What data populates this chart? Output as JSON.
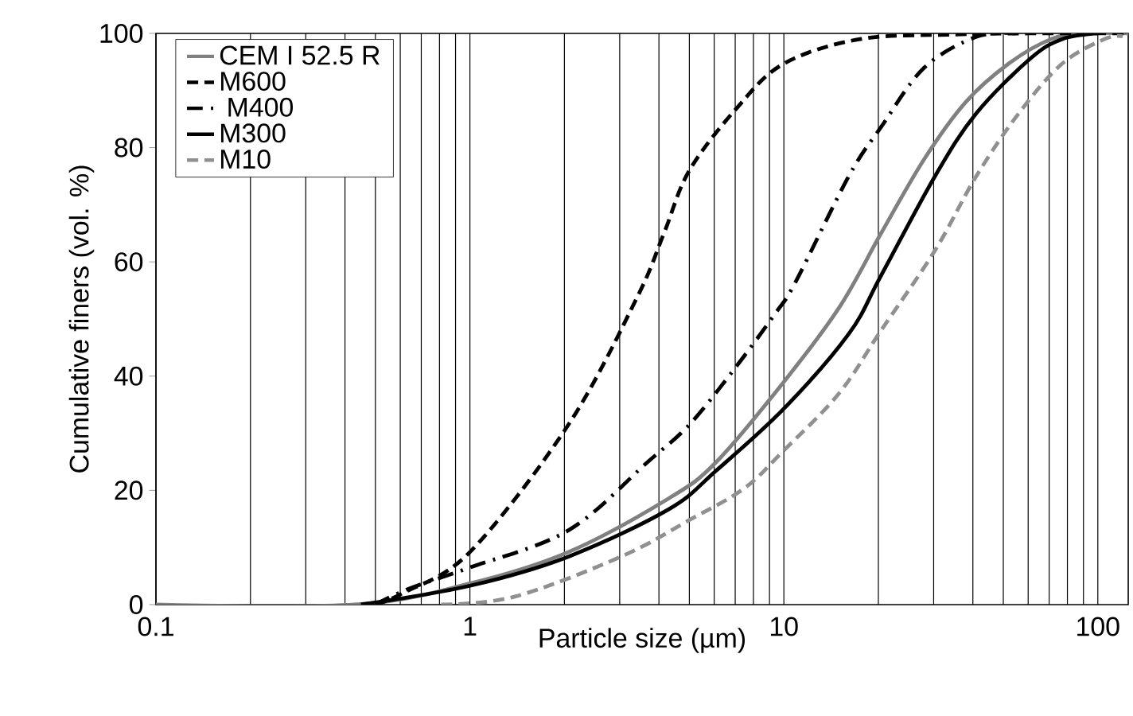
{
  "chart_data": {
    "type": "line",
    "xlabel": "Particle size (µm)",
    "ylabel": "Cumulative finers (vol. %)",
    "log": "x",
    "xlim": [
      0.1,
      125
    ],
    "ylim": [
      0,
      100
    ],
    "xticks": [
      0.1,
      1,
      10,
      100
    ],
    "yticks": [
      0,
      20,
      40,
      60,
      80,
      100
    ],
    "grid": "x",
    "legend": "top left",
    "marker": "none",
    "series": [
      {
        "name": "CEM I 52.5 R",
        "color": "#808080",
        "line_style": "solid",
        "x": [
          0.1,
          0.43,
          1,
          2.06,
          4.3,
          6.1,
          10,
          15,
          20.4,
          28,
          38,
          52,
          71,
          90,
          125
        ],
        "values": [
          0,
          0,
          3.7,
          9.2,
          18.6,
          25,
          39,
          52,
          65,
          78,
          88,
          94.7,
          99,
          100,
          100
        ]
      },
      {
        "name": "M600",
        "color": "#000000",
        "line_style": "dashed",
        "x": [
          0.5,
          0.61,
          1,
          2.06,
          3.41,
          4.15,
          5,
          7.1,
          10,
          17.5,
          35,
          60,
          125
        ],
        "values": [
          0,
          2,
          9.2,
          31.5,
          53.8,
          65,
          76,
          87,
          94.7,
          99,
          99.8,
          100,
          100
        ]
      },
      {
        "name": " M400",
        "color": "#000000",
        "line_style": "dashdot",
        "x": [
          0.5,
          0.64,
          1,
          2.06,
          3.69,
          5,
          6.9,
          9.4,
          10.9,
          16.1,
          20.4,
          28,
          41,
          55
        ],
        "values": [
          0,
          2.8,
          6.5,
          13,
          25,
          31.5,
          41,
          51,
          56.5,
          75,
          83.6,
          94,
          99.4,
          100
        ]
      },
      {
        "name": "M300",
        "color": "#000000",
        "line_style": "solid",
        "x": [
          0.45,
          1,
          2.06,
          4.3,
          6.1,
          10,
          16.1,
          20.4,
          30.3,
          41,
          61,
          77,
          100
        ],
        "values": [
          0,
          3.3,
          8.4,
          16.7,
          23.5,
          34.3,
          47.4,
          57.6,
          75,
          86,
          95.6,
          99,
          100
        ]
      },
      {
        "name": "M10",
        "color": "#909090",
        "line_style": "dashed",
        "x": [
          0.81,
          1.39,
          3.03,
          5,
          7.5,
          10,
          15,
          20.4,
          30.3,
          41,
          56,
          77,
          105,
          120
        ],
        "values": [
          0,
          1.4,
          8.4,
          14.8,
          20.4,
          27,
          37,
          48,
          62,
          75,
          86,
          94.7,
          99,
          99.5
        ]
      }
    ]
  }
}
